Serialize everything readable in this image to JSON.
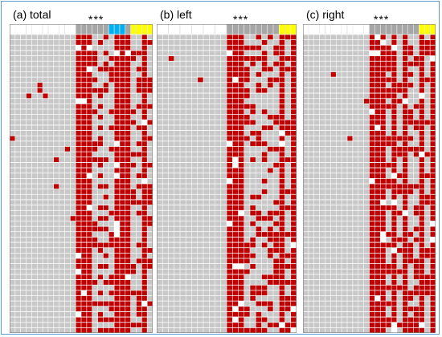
{
  "colors": {
    "grey": "#c8c8c8",
    "red": "#c00000",
    "white": "#ffffff",
    "header_white": "#ffffff",
    "header_dark": "#a6a6a6",
    "blue": "#00b0f0",
    "yellow": "#ffff00",
    "line": "#ffffff",
    "frame": "#5b9bd5"
  },
  "panels": [
    {
      "id": "total",
      "title": "(a) total",
      "stars": "***",
      "columns": 26,
      "col_kind": [
        "g",
        "g",
        "g",
        "g",
        "g",
        "g",
        "g",
        "g",
        "g",
        "g",
        "g",
        "g",
        "R",
        "R",
        "R",
        "g",
        "g",
        "g",
        "g",
        "R",
        "R",
        "R",
        "g",
        "g",
        "R",
        "g"
      ],
      "header_kind": [
        "w",
        "w",
        "w",
        "w",
        "w",
        "w",
        "w",
        "w",
        "w",
        "w",
        "w",
        "w",
        "d",
        "d",
        "d",
        "d",
        "d",
        "d",
        "b",
        "b",
        "b",
        "d",
        "y",
        "y",
        "y",
        "y"
      ]
    },
    {
      "id": "left",
      "title": "(b) left",
      "stars": "***",
      "columns": 24,
      "col_kind": [
        "g",
        "g",
        "g",
        "g",
        "g",
        "g",
        "g",
        "g",
        "g",
        "g",
        "g",
        "g",
        "R",
        "R",
        "R",
        "g",
        "g",
        "g",
        "g",
        "g",
        "g",
        "R",
        "g",
        "R"
      ],
      "header_kind": [
        "w",
        "w",
        "w",
        "w",
        "w",
        "w",
        "w",
        "w",
        "w",
        "w",
        "w",
        "w",
        "d",
        "d",
        "d",
        "d",
        "d",
        "d",
        "d",
        "d",
        "d",
        "y",
        "y",
        "y"
      ]
    },
    {
      "id": "right",
      "title": "(c) right",
      "stars": "***",
      "columns": 24,
      "col_kind": [
        "g",
        "g",
        "g",
        "g",
        "g",
        "g",
        "g",
        "g",
        "g",
        "g",
        "g",
        "g",
        "R",
        "R",
        "R",
        "g",
        "R",
        "g",
        "R",
        "g",
        "g",
        "R",
        "g",
        "R"
      ],
      "header_kind": [
        "w",
        "w",
        "w",
        "w",
        "w",
        "w",
        "w",
        "w",
        "w",
        "w",
        "w",
        "w",
        "d",
        "d",
        "d",
        "d",
        "d",
        "d",
        "d",
        "d",
        "d",
        "y",
        "y",
        "y"
      ]
    }
  ]
}
